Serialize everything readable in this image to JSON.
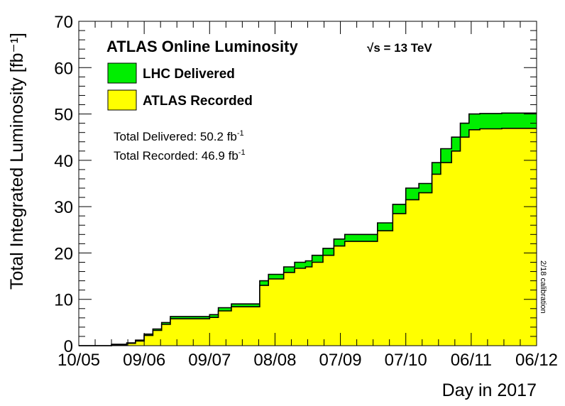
{
  "chart_data": {
    "type": "area",
    "title": "ATLAS Online Luminosity",
    "energy_label": "√s = 13 TeV",
    "xlabel": "Day in 2017",
    "ylabel": "Total Integrated Luminosity [fb⁻¹]",
    "x_ticks": [
      "10/05",
      "09/06",
      "09/07",
      "08/08",
      "07/09",
      "07/10",
      "06/11",
      "06/12"
    ],
    "x_range": [
      "10/05",
      "06/12"
    ],
    "ylim": [
      0,
      70
    ],
    "y_ticks": [
      0,
      10,
      20,
      30,
      40,
      50,
      60,
      70
    ],
    "grid": false,
    "legend_position": "top-left",
    "colors": {
      "delivered": "#00ee00",
      "recorded": "#ffff00",
      "outline": "#000000"
    },
    "annotations": {
      "total_delivered": "Total Delivered: 50.2 fb",
      "total_recorded": "Total Recorded: 46.9 fb",
      "unit_sup": "-1",
      "calibration": "2/18 calibration"
    },
    "series": [
      {
        "name": "LHC Delivered",
        "x": [
          "2017-05-10",
          "2017-05-25",
          "2017-06-01",
          "2017-06-05",
          "2017-06-09",
          "2017-06-13",
          "2017-06-17",
          "2017-06-21",
          "2017-06-26",
          "2017-07-09",
          "2017-07-13",
          "2017-07-19",
          "2017-07-23",
          "2017-08-01",
          "2017-08-05",
          "2017-08-08",
          "2017-08-12",
          "2017-08-17",
          "2017-08-22",
          "2017-08-25",
          "2017-08-30",
          "2017-09-04",
          "2017-09-09",
          "2017-09-13",
          "2017-09-20",
          "2017-09-24",
          "2017-10-01",
          "2017-10-07",
          "2017-10-13",
          "2017-10-19",
          "2017-10-23",
          "2017-10-28",
          "2017-11-01",
          "2017-11-05",
          "2017-11-10",
          "2017-11-20",
          "2017-12-06"
        ],
        "y": [
          0,
          0.3,
          0.6,
          1.2,
          2.5,
          3.6,
          5.0,
          6.3,
          6.3,
          6.7,
          8.2,
          9.0,
          9.0,
          14.0,
          15.4,
          15.4,
          17.0,
          18.0,
          18.3,
          19.5,
          21.0,
          23.0,
          24.0,
          24.0,
          24.0,
          26.5,
          30.5,
          34.0,
          35.0,
          39.5,
          42.5,
          45.0,
          48.0,
          50.0,
          50.1,
          50.2,
          50.2
        ]
      },
      {
        "name": "ATLAS Recorded",
        "x": [
          "2017-05-10",
          "2017-05-25",
          "2017-06-01",
          "2017-06-05",
          "2017-06-09",
          "2017-06-13",
          "2017-06-17",
          "2017-06-21",
          "2017-06-26",
          "2017-07-09",
          "2017-07-13",
          "2017-07-19",
          "2017-07-23",
          "2017-08-01",
          "2017-08-05",
          "2017-08-08",
          "2017-08-12",
          "2017-08-17",
          "2017-08-22",
          "2017-08-25",
          "2017-08-30",
          "2017-09-04",
          "2017-09-09",
          "2017-09-13",
          "2017-09-20",
          "2017-09-24",
          "2017-10-01",
          "2017-10-07",
          "2017-10-13",
          "2017-10-19",
          "2017-10-23",
          "2017-10-28",
          "2017-11-01",
          "2017-11-05",
          "2017-11-10",
          "2017-11-20",
          "2017-12-06"
        ],
        "y": [
          0,
          0.2,
          0.5,
          1.0,
          2.2,
          3.3,
          4.6,
          5.8,
          5.8,
          6.1,
          7.5,
          8.4,
          8.4,
          13.0,
          14.4,
          14.4,
          15.8,
          16.7,
          17.0,
          18.0,
          19.5,
          21.5,
          22.5,
          22.5,
          22.5,
          24.8,
          28.5,
          31.5,
          33.0,
          37.0,
          39.5,
          42.0,
          45.0,
          46.6,
          46.8,
          46.9,
          46.9
        ]
      }
    ]
  }
}
